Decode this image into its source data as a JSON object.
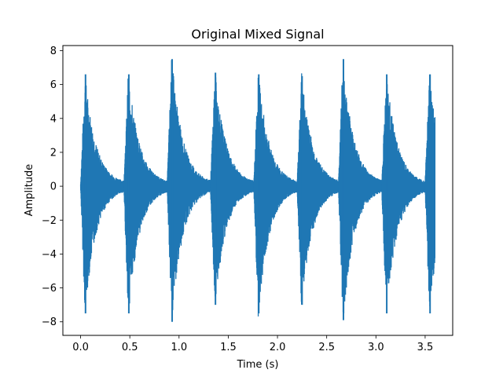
{
  "chart_data": {
    "type": "line",
    "title": "Original Mixed Signal",
    "xlabel": "Time (s)",
    "ylabel": "Amplitude",
    "xlim": [
      -0.18,
      3.78
    ],
    "ylim": [
      -8.8,
      8.3
    ],
    "xticks": [
      0.0,
      0.5,
      1.0,
      1.5,
      2.0,
      2.5,
      3.0,
      3.5
    ],
    "xtick_labels": [
      "0.0",
      "0.5",
      "1.0",
      "1.5",
      "2.0",
      "2.5",
      "3.0",
      "3.5"
    ],
    "yticks": [
      -8,
      -6,
      -4,
      -2,
      0,
      2,
      4,
      6,
      8
    ],
    "ytick_labels": [
      "−8",
      "−6",
      "−4",
      "−2",
      "0",
      "2",
      "4",
      "6",
      "8"
    ],
    "grid": false,
    "color": "#1f77b4",
    "x_range": [
      0.0,
      3.6
    ],
    "bursts": [
      {
        "onset": 0.0,
        "peak": 6.6,
        "trough": -7.5
      },
      {
        "onset": 0.44,
        "peak": 6.6,
        "trough": -7.5
      },
      {
        "onset": 0.88,
        "peak": 7.5,
        "trough": -8.0
      },
      {
        "onset": 1.32,
        "peak": 6.7,
        "trough": -7.0
      },
      {
        "onset": 1.76,
        "peak": 6.6,
        "trough": -7.5
      },
      {
        "onset": 2.2,
        "peak": 6.5,
        "trough": -7.0
      },
      {
        "onset": 2.62,
        "peak": 7.5,
        "trough": -7.9
      },
      {
        "onset": 3.06,
        "peak": 6.6,
        "trough": -7.5
      },
      {
        "onset": 3.5,
        "peak": 6.6,
        "trough": -7.5
      }
    ]
  }
}
